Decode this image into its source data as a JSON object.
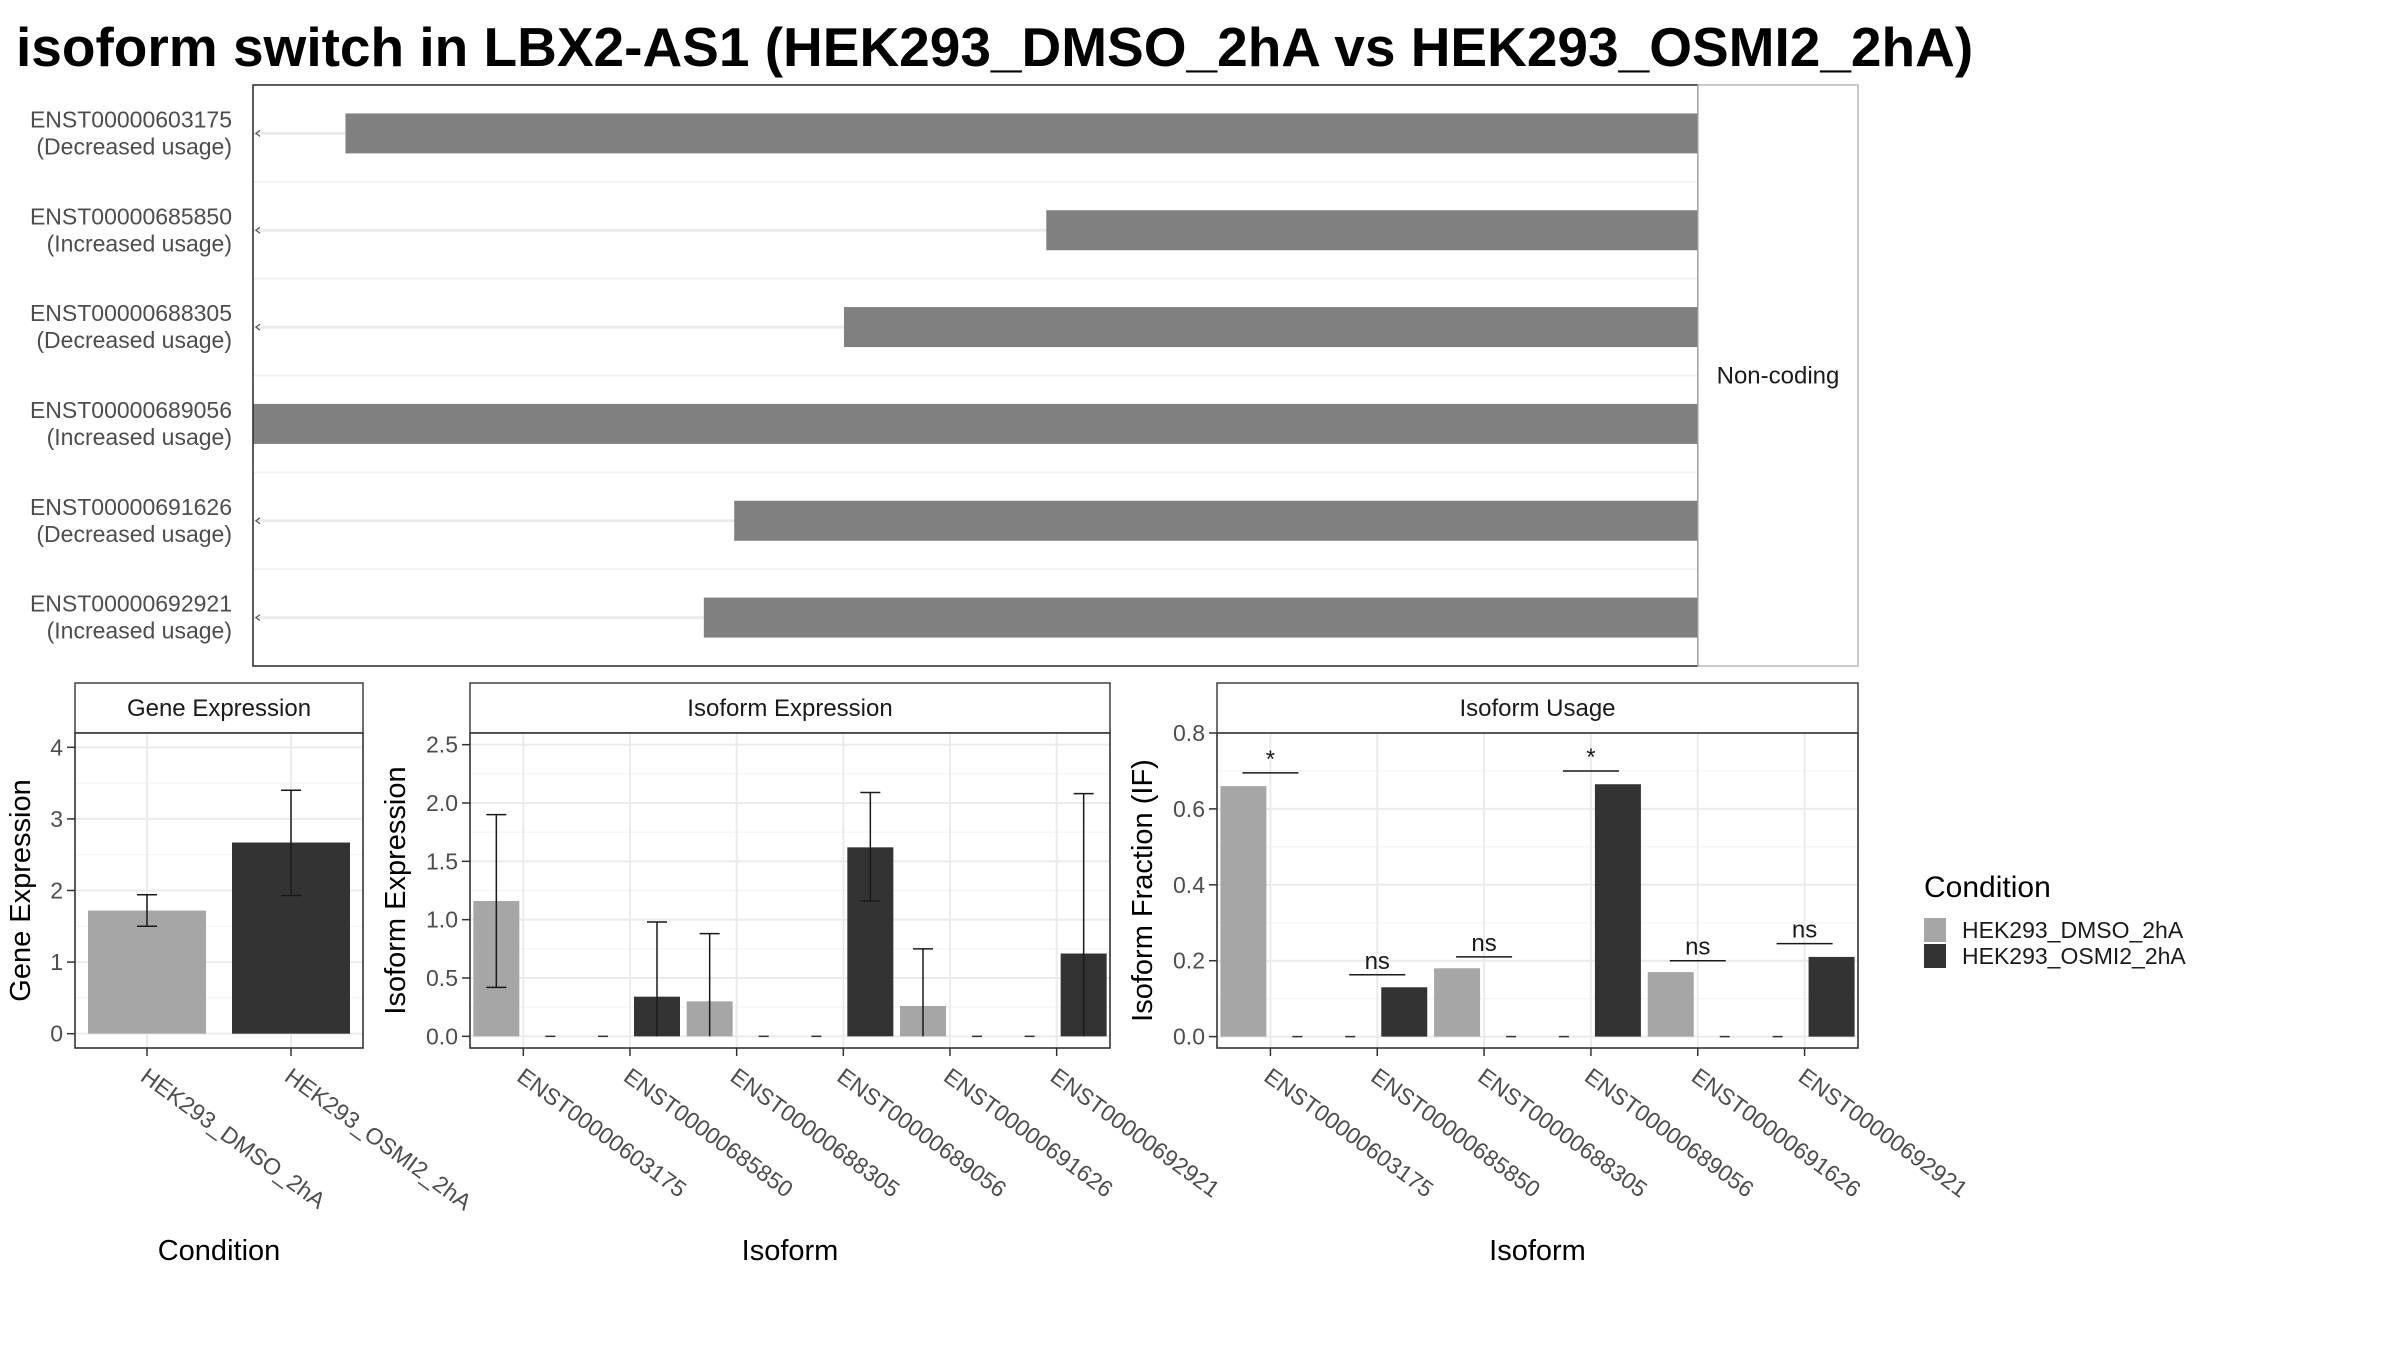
{
  "title": "isoform switch in LBX2-AS1 (HEK293_DMSO_2hA vs HEK293_OSMI2_2hA)",
  "colors": {
    "dmso": "#a6a6a6",
    "osmi": "#333333",
    "transcript": "#808080",
    "grid": "#ebebeb",
    "axis": "#333333"
  },
  "transcripts": {
    "strip_label": "Non-coding",
    "items": [
      {
        "id": "ENST00000603175",
        "usage": "(Decreased usage)",
        "start": 0.064
      },
      {
        "id": "ENST00000685850",
        "usage": "(Increased usage)",
        "start": 0.549
      },
      {
        "id": "ENST00000688305",
        "usage": "(Decreased usage)",
        "start": 0.409
      },
      {
        "id": "ENST00000689056",
        "usage": "(Increased usage)",
        "start": 0.0
      },
      {
        "id": "ENST00000691626",
        "usage": "(Decreased usage)",
        "start": 0.333
      },
      {
        "id": "ENST00000692921",
        "usage": "(Increased usage)",
        "start": 0.312
      }
    ]
  },
  "legend": {
    "title": "Condition",
    "items": [
      {
        "label": "HEK293_DMSO_2hA",
        "key": "dmso"
      },
      {
        "label": "HEK293_OSMI2_2hA",
        "key": "osmi"
      }
    ]
  },
  "chart_data": [
    {
      "type": "bar",
      "title": "Gene Expression",
      "xlabel": "Condition",
      "ylabel": "Gene Expression",
      "ylim": [
        -0.2,
        4.2
      ],
      "yticks": [
        "0",
        "1",
        "2",
        "3",
        "4"
      ],
      "categories": [
        "HEK293_DMSO_2hA",
        "HEK293_OSMI2_2hA"
      ],
      "bars": [
        {
          "category": "HEK293_DMSO_2hA",
          "condition": "dmso",
          "value": 1.72,
          "err_low": 1.5,
          "err_high": 1.94
        },
        {
          "category": "HEK293_OSMI2_2hA",
          "condition": "osmi",
          "value": 2.67,
          "err_low": 1.93,
          "err_high": 3.4
        }
      ]
    },
    {
      "type": "bar",
      "title": "Isoform Expression",
      "xlabel": "Isoform",
      "ylabel": "Isoform Expression",
      "ylim": [
        -0.1,
        2.6
      ],
      "yticks": [
        "0.0",
        "0.5",
        "1.0",
        "1.5",
        "2.0",
        "2.5"
      ],
      "categories": [
        "ENST00000603175",
        "ENST00000685850",
        "ENST00000688305",
        "ENST00000689056",
        "ENST00000691626",
        "ENST00000692921"
      ],
      "series": [
        {
          "name": "HEK293_DMSO_2hA",
          "values": [
            1.16,
            0.0,
            0.3,
            0.0,
            0.26,
            0.0
          ],
          "err_low": [
            0.42,
            0.0,
            0.0,
            0.0,
            0.0,
            0.0
          ],
          "err_high": [
            1.9,
            0.0,
            0.88,
            0.0,
            0.75,
            0.0
          ]
        },
        {
          "name": "HEK293_OSMI2_2hA",
          "values": [
            0.0,
            0.34,
            0.0,
            1.62,
            0.0,
            0.71
          ],
          "err_low": [
            0.0,
            0.0,
            0.0,
            1.16,
            0.0,
            0.0
          ],
          "err_high": [
            0.0,
            0.98,
            0.0,
            2.09,
            0.0,
            2.08
          ]
        }
      ]
    },
    {
      "type": "bar",
      "title": "Isoform Usage",
      "xlabel": "Isoform",
      "ylabel": "Isoform Fraction (IF)",
      "ylim": [
        -0.03,
        0.8
      ],
      "yticks": [
        "0.0",
        "0.2",
        "0.4",
        "0.6",
        "0.8"
      ],
      "categories": [
        "ENST00000603175",
        "ENST00000685850",
        "ENST00000688305",
        "ENST00000689056",
        "ENST00000691626",
        "ENST00000692921"
      ],
      "series": [
        {
          "name": "HEK293_DMSO_2hA",
          "values": [
            0.66,
            0.0,
            0.18,
            0.0,
            0.17,
            0.0
          ]
        },
        {
          "name": "HEK293_OSMI2_2hA",
          "values": [
            0.0,
            0.13,
            0.0,
            0.665,
            0.0,
            0.21
          ]
        }
      ],
      "annotations": [
        {
          "category": "ENST00000603175",
          "label": "*",
          "y": 0.695
        },
        {
          "category": "ENST00000685850",
          "label": "ns",
          "y": 0.163
        },
        {
          "category": "ENST00000688305",
          "label": "ns",
          "y": 0.21
        },
        {
          "category": "ENST00000689056",
          "label": "*",
          "y": 0.7
        },
        {
          "category": "ENST00000691626",
          "label": "ns",
          "y": 0.2
        },
        {
          "category": "ENST00000692921",
          "label": "ns",
          "y": 0.245
        }
      ]
    }
  ]
}
